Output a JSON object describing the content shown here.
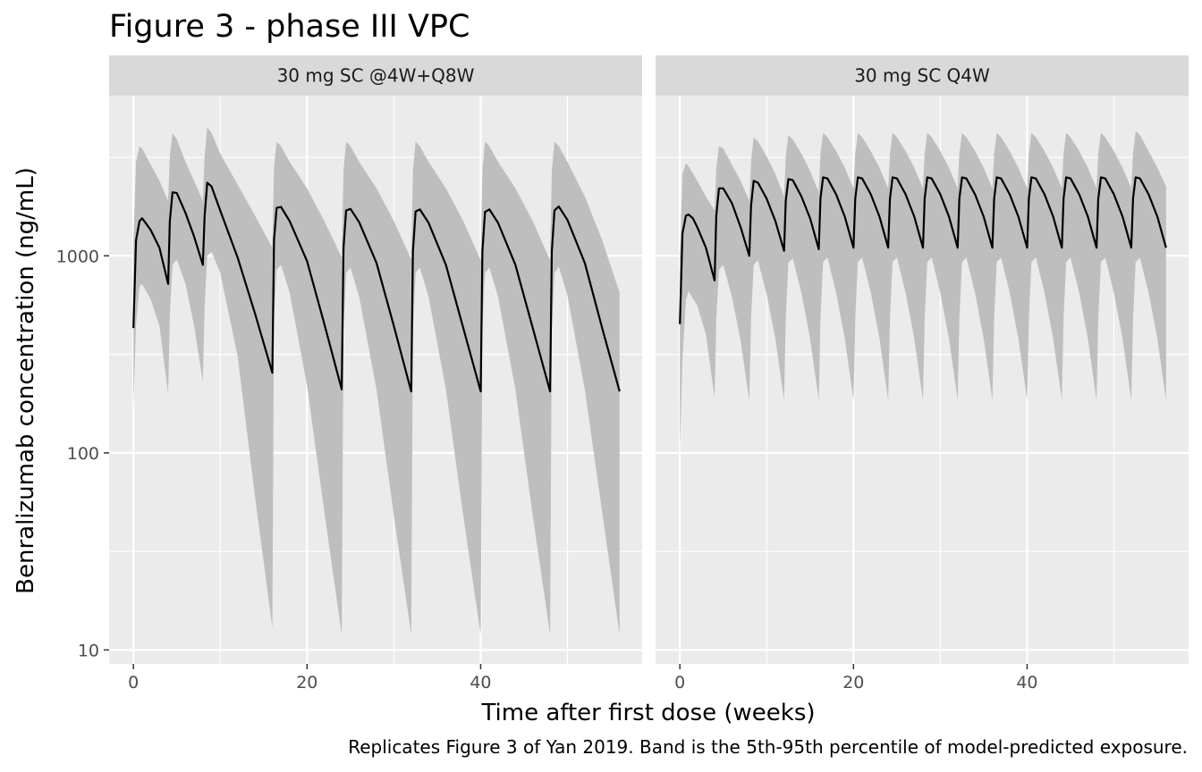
{
  "chart_data": {
    "type": "area",
    "title": "Figure 3 - phase III VPC",
    "xlabel": "Time after first dose (weeks)",
    "ylabel": "Benralizumab concentration (ng/mL)",
    "caption": "Replicates Figure 3 of Yan 2019. Band is the 5th-95th percentile of model-predicted exposure.",
    "y_scale": "log10",
    "ylim": [
      8.5,
      6500
    ],
    "xlim": [
      -2.8,
      58.6
    ],
    "x_ticks": [
      0,
      20,
      40
    ],
    "x_tick_labels": [
      "0",
      "20",
      "40"
    ],
    "y_ticks": [
      10,
      100,
      1000
    ],
    "y_tick_labels": [
      "10",
      "100",
      "1000"
    ],
    "grid": true,
    "colors": {
      "panel_background": "#ebebeb",
      "strip_background": "#d9d9d9",
      "band": "#bebebe",
      "line": "#000000",
      "grid": "#ffffff"
    },
    "panels": [
      {
        "label": "30 mg SC @4W+Q8W",
        "end_week": 56,
        "series": [
          {
            "style": "line",
            "x": [
              0,
              0.3,
              0.7,
              1,
              1.5,
              2,
              3,
              4,
              4.2,
              4.5,
              5,
              6,
              7,
              8,
              8.2,
              8.5,
              9,
              10,
              12,
              14,
              16,
              16.2,
              16.5,
              17,
              18,
              20,
              22,
              24,
              24.2,
              24.5,
              25,
              26,
              28,
              30,
              32,
              32.2,
              32.5,
              33,
              34,
              36,
              38,
              40,
              40.2,
              40.5,
              41,
              42,
              44,
              46,
              48,
              48.2,
              48.5,
              49,
              50,
              52,
              54,
              56
            ],
            "values": [
              430,
              1200,
              1500,
              1550,
              1450,
              1350,
              1100,
              720,
              1500,
              2100,
              2080,
              1650,
              1250,
              900,
              1600,
              2350,
              2250,
              1700,
              980,
              510,
              255,
              1200,
              1750,
              1770,
              1500,
              940,
              450,
              210,
              1100,
              1700,
              1730,
              1480,
              920,
              440,
              205,
              1050,
              1680,
              1720,
              1470,
              900,
              430,
              205,
              1050,
              1670,
              1720,
              1470,
              900,
              430,
              205,
              1050,
              1700,
              1780,
              1520,
              920,
              430,
              205
            ]
          },
          {
            "style": "band-upper",
            "x": [
              0,
              0.3,
              0.7,
              1,
              2,
              3,
              4,
              4.2,
              4.5,
              5,
              6,
              7,
              8,
              8.2,
              8.5,
              9,
              10,
              12,
              14,
              16,
              16.2,
              16.5,
              17,
              18,
              20,
              22,
              24,
              24.2,
              24.5,
              25,
              26,
              28,
              30,
              32,
              32.2,
              32.5,
              33,
              34,
              36,
              38,
              40,
              40.2,
              40.5,
              41,
              42,
              44,
              46,
              48,
              48.2,
              48.5,
              49,
              50,
              52,
              54,
              56
            ],
            "values": [
              1200,
              3000,
              3600,
              3500,
              2900,
              2400,
              1900,
              3200,
              4200,
              3900,
              3000,
              2400,
              1900,
              3200,
              4500,
              4200,
              3300,
              2300,
              1600,
              1100,
              2800,
              3800,
              3600,
              3000,
              2200,
              1500,
              980,
              2700,
              3800,
              3600,
              3000,
              2200,
              1500,
              960,
              2700,
              3800,
              3600,
              3000,
              2200,
              1500,
              950,
              2700,
              3800,
              3600,
              3000,
              2200,
              1500,
              950,
              2700,
              3800,
              3600,
              3000,
              2000,
              1200,
              650
            ]
          },
          {
            "style": "band-lower",
            "x": [
              0,
              0.3,
              0.7,
              1,
              2,
              3,
              4,
              4.2,
              4.5,
              5,
              6,
              7,
              8,
              8.2,
              8.5,
              9,
              10,
              12,
              14,
              16,
              16.2,
              16.5,
              17,
              18,
              20,
              22,
              24,
              24.2,
              24.5,
              25,
              26,
              28,
              30,
              32,
              32.2,
              32.5,
              33,
              34,
              36,
              38,
              40,
              40.2,
              40.5,
              41,
              42,
              44,
              46,
              48,
              48.2,
              48.5,
              49,
              50,
              52,
              54,
              56
            ],
            "values": [
              170,
              450,
              700,
              720,
              600,
              440,
              200,
              500,
              900,
              960,
              720,
              440,
              230,
              550,
              1000,
              1050,
              820,
              310,
              60,
              13,
              500,
              850,
              900,
              650,
              220,
              50,
              12,
              420,
              820,
              870,
              620,
              210,
              48,
              12,
              420,
              820,
              870,
              620,
              210,
              48,
              12,
              420,
              820,
              870,
              620,
              210,
              48,
              12,
              420,
              820,
              880,
              630,
              210,
              50,
              12
            ]
          }
        ]
      },
      {
        "label": "30 mg SC Q4W",
        "end_week": 56,
        "series": [
          {
            "style": "line",
            "x": [
              0,
              0.3,
              0.7,
              1,
              1.5,
              2,
              3,
              4,
              4.2,
              4.5,
              5,
              6,
              7,
              8,
              8.2,
              8.5,
              9,
              10,
              11,
              12,
              12.2,
              12.5,
              13,
              14,
              15,
              16,
              16.2,
              16.5,
              17,
              18,
              19,
              20,
              20.2,
              20.5,
              21,
              22,
              23,
              24,
              24.2,
              24.5,
              25,
              26,
              27,
              28,
              28.2,
              28.5,
              29,
              30,
              31,
              32,
              32.2,
              32.5,
              33,
              34,
              35,
              36,
              36.2,
              36.5,
              37,
              38,
              39,
              40,
              40.2,
              40.5,
              41,
              42,
              43,
              44,
              44.2,
              44.5,
              45,
              46,
              47,
              48,
              48.2,
              48.5,
              49,
              50,
              51,
              52,
              52.2,
              52.5,
              53,
              54,
              55,
              56
            ],
            "values": [
              450,
              1300,
              1600,
              1620,
              1550,
              1400,
              1100,
              750,
              1600,
              2200,
              2200,
              1850,
              1400,
              1000,
              1800,
              2400,
              2350,
              1950,
              1500,
              1060,
              1900,
              2450,
              2420,
              2000,
              1550,
              1080,
              1950,
              2500,
              2470,
              2050,
              1580,
              1100,
              1950,
              2500,
              2470,
              2050,
              1580,
              1100,
              1950,
              2500,
              2470,
              2050,
              1580,
              1100,
              1950,
              2500,
              2470,
              2050,
              1580,
              1100,
              1950,
              2500,
              2470,
              2050,
              1580,
              1100,
              1950,
              2500,
              2470,
              2050,
              1580,
              1100,
              1950,
              2500,
              2470,
              2050,
              1580,
              1100,
              1950,
              2500,
              2470,
              2050,
              1580,
              1100,
              1950,
              2500,
              2470,
              2050,
              1580,
              1100,
              1950,
              2500,
              2470,
              2050,
              1580,
              1100
            ]
          },
          {
            "style": "band-upper",
            "x": [
              0,
              0.3,
              0.7,
              1,
              2,
              3,
              4,
              4.2,
              4.5,
              5,
              6,
              7,
              8,
              8.2,
              8.5,
              9,
              10,
              11,
              12,
              12.2,
              12.5,
              13,
              14,
              15,
              16,
              16.2,
              16.5,
              17,
              18,
              19,
              20,
              20.2,
              20.5,
              21,
              22,
              23,
              24,
              24.2,
              24.5,
              25,
              26,
              27,
              28,
              28.2,
              28.5,
              29,
              30,
              31,
              32,
              32.2,
              32.5,
              33,
              34,
              35,
              36,
              36.2,
              36.5,
              37,
              38,
              39,
              40,
              40.2,
              40.5,
              41,
              42,
              43,
              44,
              44.2,
              44.5,
              45,
              46,
              47,
              48,
              48.2,
              48.5,
              49,
              50,
              51,
              52,
              52.2,
              52.5,
              53,
              54,
              55,
              56
            ],
            "values": [
              1000,
              2600,
              2950,
              2850,
              2400,
              2000,
              1700,
              2800,
              3600,
              3500,
              2900,
              2400,
              1900,
              3000,
              4000,
              3800,
              3200,
              2600,
              2000,
              3200,
              4100,
              3900,
              3300,
              2700,
              2100,
              3300,
              4200,
              4000,
              3400,
              2800,
              2200,
              3300,
              4200,
              4000,
              3400,
              2800,
              2200,
              3300,
              4200,
              4000,
              3400,
              2800,
              2200,
              3300,
              4200,
              4000,
              3400,
              2800,
              2200,
              3300,
              4200,
              4000,
              3400,
              2800,
              2200,
              3300,
              4200,
              4000,
              3400,
              2800,
              2200,
              3300,
              4200,
              4000,
              3400,
              2800,
              2200,
              3300,
              4200,
              4000,
              3400,
              2800,
              2200,
              3300,
              4200,
              4000,
              3400,
              2800,
              2200,
              3300,
              4300,
              4100,
              3400,
              2800,
              2250
            ]
          },
          {
            "style": "band-lower",
            "x": [
              0,
              0.3,
              0.7,
              1,
              2,
              3,
              4,
              4.2,
              4.5,
              5,
              6,
              7,
              8,
              8.2,
              8.5,
              9,
              10,
              11,
              12,
              12.2,
              12.5,
              13,
              14,
              15,
              16,
              16.2,
              16.5,
              17,
              18,
              19,
              20,
              20.2,
              20.5,
              21,
              22,
              23,
              24,
              24.2,
              24.5,
              25,
              26,
              27,
              28,
              28.2,
              28.5,
              29,
              30,
              31,
              32,
              32.2,
              32.5,
              33,
              34,
              35,
              36,
              36.2,
              36.5,
              37,
              38,
              39,
              40,
              40.2,
              40.5,
              41,
              42,
              43,
              44,
              44.2,
              44.5,
              45,
              46,
              47,
              48,
              48.2,
              48.5,
              49,
              50,
              51,
              52,
              52.2,
              52.5,
              53,
              54,
              55,
              56
            ],
            "values": [
              100,
              300,
              600,
              660,
              560,
              400,
              190,
              480,
              850,
              900,
              620,
              370,
              185,
              480,
              900,
              950,
              640,
              380,
              185,
              480,
              920,
              970,
              650,
              380,
              185,
              480,
              930,
              980,
              650,
              380,
              185,
              480,
              930,
              980,
              650,
              380,
              185,
              480,
              930,
              980,
              650,
              380,
              185,
              480,
              930,
              980,
              650,
              380,
              185,
              480,
              930,
              980,
              650,
              380,
              185,
              480,
              930,
              980,
              650,
              380,
              185,
              480,
              930,
              980,
              650,
              380,
              185,
              480,
              930,
              980,
              650,
              380,
              185,
              480,
              930,
              980,
              650,
              380,
              185,
              480,
              930,
              980,
              650,
              380,
              185
            ]
          }
        ]
      }
    ]
  }
}
